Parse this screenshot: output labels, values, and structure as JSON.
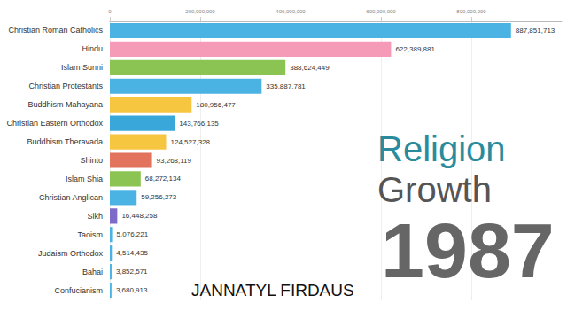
{
  "chart_data": {
    "type": "bar",
    "orientation": "horizontal",
    "title": "Religion Growth",
    "subtitle": "1987",
    "annotations": [
      "JANNATYL FIRDAUS"
    ],
    "categories": [
      "Christian Roman Catholics",
      "Hindu",
      "Islam Sunni",
      "Christian Protestants",
      "Buddhism Mahayana",
      "Christian Eastern Orthodox",
      "Buddhism Theravada",
      "Shinto",
      "Islam Shia",
      "Christian Anglican",
      "Sikh",
      "Taoism",
      "Judaism Orthodox",
      "Bahai",
      "Confucianism"
    ],
    "values": [
      887851713,
      622389881,
      388624449,
      335887781,
      180956477,
      143766135,
      124527328,
      93268119,
      68272134,
      59256273,
      16448258,
      5076221,
      4514435,
      3852571,
      3680913
    ],
    "value_labels": [
      "887,851,713",
      "622,389,881",
      "388,624,449",
      "335,887,781",
      "180,956,477",
      "143,766,135",
      "124,527,328",
      "93,268,119",
      "68,272,134",
      "59,256,273",
      "16,448,258",
      "5,076,221",
      "4,514,435",
      "3,852,571",
      "3,680,913"
    ],
    "colors": [
      "#4bb3e3",
      "#f59bb7",
      "#8bc453",
      "#4bb3e3",
      "#f7c640",
      "#3aa7da",
      "#f7c640",
      "#e2735c",
      "#8bc453",
      "#4bb3e3",
      "#7d6bc9",
      "#4bb3e3",
      "#4bb3e3",
      "#4bb3e3",
      "#4bb3e3"
    ],
    "xlim": [
      0,
      1000000000
    ],
    "xticks": [
      0,
      {
        "value": 200000000,
        "label": "200,000,000"
      },
      {
        "value": 400000000,
        "label": "400,000,000"
      },
      {
        "value": 600000000,
        "label": "600,000,000"
      },
      {
        "value": 800000000,
        "label": "800,000,000"
      }
    ],
    "grid": true,
    "data_labels": true
  }
}
